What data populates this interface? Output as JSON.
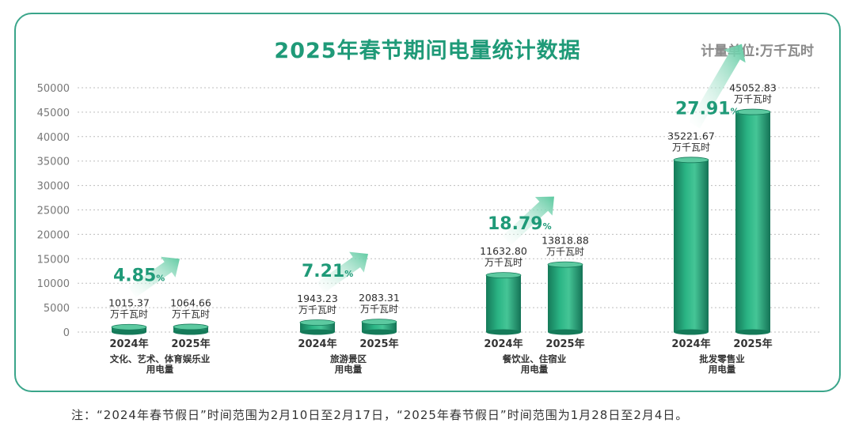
{
  "chart_data": {
    "type": "bar",
    "title": "2025年春节期间电量统计数据",
    "unit_label": "计量单位:万千瓦时",
    "ylim": [
      0,
      50000
    ],
    "yticks": [
      0,
      5000,
      10000,
      15000,
      20000,
      25000,
      30000,
      35000,
      40000,
      45000,
      50000
    ],
    "grid": true,
    "value_unit": "万千瓦时",
    "groups": [
      {
        "category_lines": [
          "文化、艺术、体育娱乐业",
          "用电量"
        ],
        "growth": "4.85",
        "bars": [
          {
            "year": "2024年",
            "value": 1015.37,
            "label": "1015.37"
          },
          {
            "year": "2025年",
            "value": 1064.66,
            "label": "1064.66"
          }
        ]
      },
      {
        "category_lines": [
          "旅游景区",
          "用电量"
        ],
        "growth": "7.21",
        "bars": [
          {
            "year": "2024年",
            "value": 1943.23,
            "label": "1943.23"
          },
          {
            "year": "2025年",
            "value": 2083.31,
            "label": "2083.31"
          }
        ]
      },
      {
        "category_lines": [
          "餐饮业、住宿业",
          "用电量"
        ],
        "growth": "18.79",
        "bars": [
          {
            "year": "2024年",
            "value": 11632.8,
            "label": "11632.80"
          },
          {
            "year": "2025年",
            "value": 13818.88,
            "label": "13818.88"
          }
        ]
      },
      {
        "category_lines": [
          "批发零售业",
          "用电量"
        ],
        "growth": "27.91",
        "bars": [
          {
            "year": "2024年",
            "value": 35221.67,
            "label": "35221.67"
          },
          {
            "year": "2025年",
            "value": 45052.83,
            "label": "45052.83"
          }
        ]
      }
    ],
    "colors": {
      "bar": "#23a279",
      "bar_dark": "#157a59",
      "bar_light": "#5cc9a0",
      "accent": "#1f9a78",
      "grid": "#bdbdbd",
      "axis_text": "#777777"
    }
  },
  "percent_sign": "%",
  "footnote": "注：“2024年春节假日”时间范围为2月10日至2月17日，“2025年春节假日”时间范围为1月28日至2月4日。"
}
